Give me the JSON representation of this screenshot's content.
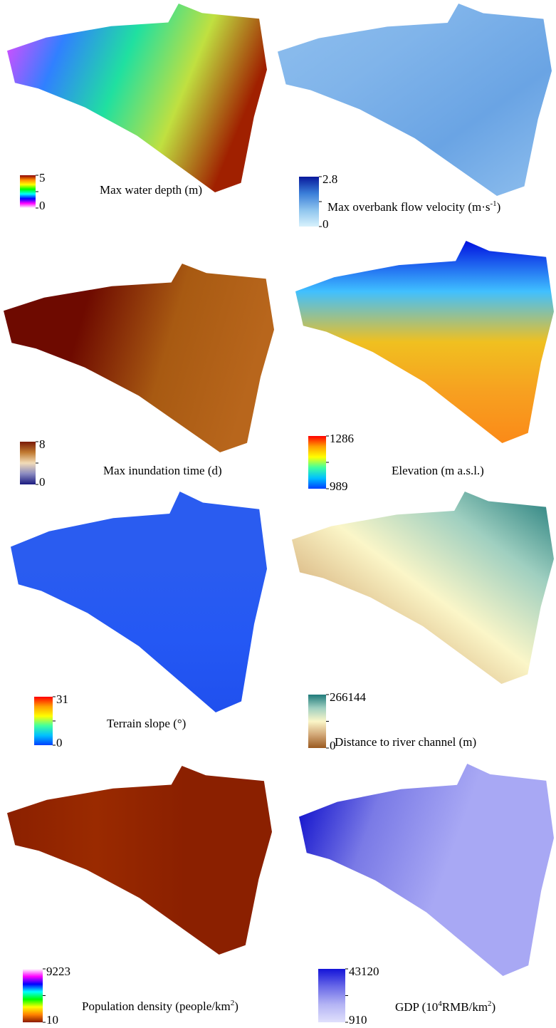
{
  "panels": [
    {
      "title": [
        {
          "text": "Max water depth (m)"
        }
      ],
      "max": "5",
      "min": "0",
      "colorbar": [
        "#8b0000",
        "#ff8c00",
        "#ffff00",
        "#00ff00",
        "#00ffff",
        "#0000ff",
        "#ff00ff",
        "#ffffff"
      ],
      "map_colors": [
        "#ff40ff",
        "#3080ff",
        "#20e0a0",
        "#c0e040",
        "#a02000"
      ]
    },
    {
      "title": [
        {
          "text": "Max overbank flow velocity (m·s"
        },
        {
          "text": "-1",
          "sup": true
        },
        {
          "text": ")"
        }
      ],
      "max": "2.8",
      "min": "0",
      "colorbar": [
        "#08189c",
        "#3a7ed8",
        "#8ec4ee",
        "#d8f2fc"
      ],
      "map_colors": [
        "#8fbfee",
        "#80b4ea",
        "#6aa4e4",
        "#8fbfee"
      ]
    },
    {
      "title": [
        {
          "text": "Max inundation time (d)"
        }
      ],
      "max": "8",
      "min": "0",
      "colorbar": [
        "#7a1a08",
        "#c07a30",
        "#f2dcb8",
        "#8a8ac0",
        "#1a1a80"
      ],
      "map_colors": [
        "#6e0a00",
        "#6e0a00",
        "#a85a12",
        "#b8661c"
      ]
    },
    {
      "title": [
        {
          "text": "Elevation (m a.s.l.)"
        }
      ],
      "max": "1286",
      "min": "989",
      "colorbar": [
        "#ff0000",
        "#ffa000",
        "#ffff00",
        "#40ffa0",
        "#00c0ff",
        "#0040ff"
      ],
      "map_colors": [
        "#0010e0",
        "#40c0ff",
        "#f0c020",
        "#f7a020",
        "#fb8a18"
      ]
    },
    {
      "title": [
        {
          "text": "Terrain slope (°)"
        }
      ],
      "max": "31",
      "min": "0",
      "colorbar": [
        "#ff0000",
        "#ffa000",
        "#ffff00",
        "#40ffa0",
        "#00c0ff",
        "#0040ff"
      ],
      "map_colors": [
        "#2a5cf0",
        "#2a5cf0",
        "#2458f4",
        "#2050ee"
      ]
    },
    {
      "title": [
        {
          "text": "Distance to river channel (m)"
        }
      ],
      "max": "266144",
      "min": "0",
      "colorbar": [
        "#1f7a7a",
        "#9fcfc0",
        "#fbf6c8",
        "#d2a878",
        "#9a5a20"
      ],
      "map_colors": [
        "#9a5a20",
        "#d8b480",
        "#fbf6c8",
        "#9fcfc0",
        "#1f7a7a"
      ]
    },
    {
      "title": [
        {
          "text": "Population density (people/km"
        },
        {
          "text": "2",
          "sup": true
        },
        {
          "text": ")"
        }
      ],
      "max": "9223",
      "min": "10",
      "colorbar": [
        "#ffffff",
        "#ff00ff",
        "#0000ff",
        "#00ffff",
        "#00ff00",
        "#ffff00",
        "#ff8000",
        "#8b1a00"
      ],
      "map_colors": [
        "#8b2000",
        "#9a2a00",
        "#8b2000",
        "#8b2000"
      ]
    },
    {
      "title": [
        {
          "text": "GDP (10"
        },
        {
          "text": "4",
          "sup": true
        },
        {
          "text": "RMB/km"
        },
        {
          "text": "2",
          "sup": true
        },
        {
          "text": ")"
        }
      ],
      "max": "43120",
      "min": "910",
      "colorbar": [
        "#1414d8",
        "#6a6ae8",
        "#b4b4f4",
        "#e0e0fc"
      ],
      "map_colors": [
        "#0000c8",
        "#7a7ae6",
        "#a8a8f4",
        "#a8a8f4"
      ]
    }
  ]
}
